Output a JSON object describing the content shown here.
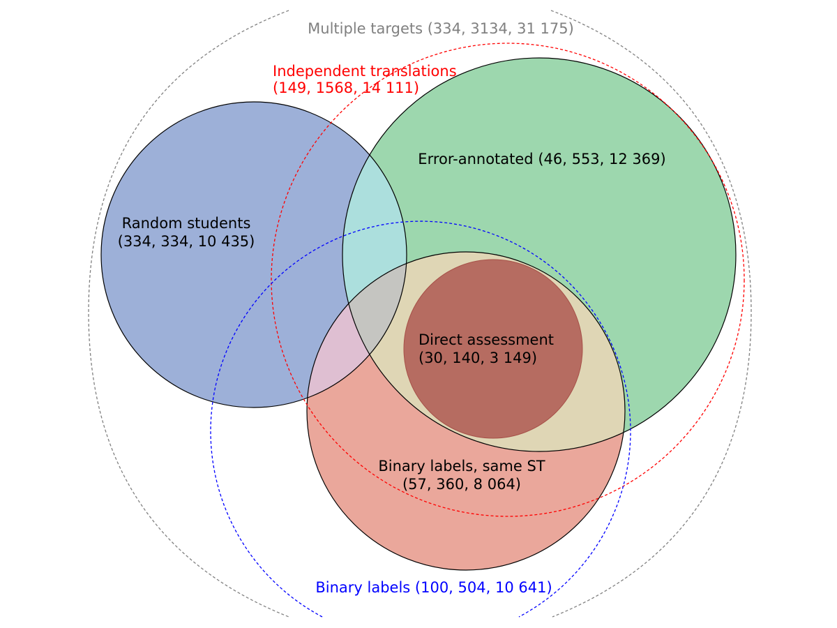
{
  "diagram": {
    "type": "venn",
    "sets": {
      "multiple_targets": {
        "label": "Multiple targets (334, 3134, 31 175)",
        "color": "#808080",
        "style": "dashed"
      },
      "independent_translations": {
        "label_line1": "Independent translations",
        "label_line2": "(149, 1568, 14 111)",
        "color": "#ff0000",
        "style": "dashed"
      },
      "binary_labels": {
        "label": "Binary labels (100, 504, 10 641)",
        "color": "#0000ff",
        "style": "dashed"
      },
      "random_students": {
        "label_line1": "Random students",
        "label_line2": "(334, 334, 10 435)",
        "color": "#9db0d8"
      },
      "error_annotated": {
        "label": "Error-annotated (46, 553, 12 369)",
        "color": "#9dd7ae"
      },
      "binary_labels_same_st": {
        "label_line1": "Binary labels, same ST",
        "label_line2": "(57, 360, 8 064)",
        "color": "#eaa79b"
      },
      "direct_assessment": {
        "label_line1": "Direct assessment",
        "label_line2": "(30, 140, 3 149)",
        "color": "#b66c61"
      }
    }
  }
}
